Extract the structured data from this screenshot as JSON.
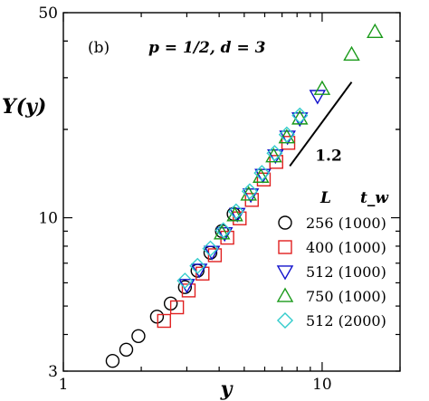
{
  "chart_data": {
    "type": "scatter",
    "panel_label": "(b)",
    "params_label": "p = 1/2, d = 3",
    "xlabel": "y",
    "ylabel": "Y(y)",
    "x_scale": "log",
    "y_scale": "log",
    "xlim": [
      1,
      20
    ],
    "ylim": [
      3,
      50
    ],
    "x_ticks": [
      {
        "value": 1,
        "label": "1"
      },
      {
        "value": 10,
        "label": "10"
      }
    ],
    "y_ticks": [
      {
        "value": 3,
        "label": "3"
      },
      {
        "value": 10,
        "label": "10"
      },
      {
        "value": 50,
        "label": "50"
      }
    ],
    "slope_annotation": {
      "label": "1.2",
      "slope": 1.2,
      "from": [
        7.5,
        15.0
      ],
      "to": [
        13.0,
        29.0
      ]
    },
    "legend": {
      "header_L": "L",
      "header_tw": "t_w",
      "position": "bottom-right"
    },
    "series": [
      {
        "name": "256 (1000)",
        "marker": "circle",
        "color": "#000000",
        "x": [
          1.55,
          1.75,
          1.95,
          2.3,
          2.6,
          2.95,
          3.3,
          3.7,
          4.1,
          4.55
        ],
        "y": [
          3.25,
          3.55,
          3.95,
          4.6,
          5.1,
          5.8,
          6.6,
          7.6,
          9.0,
          10.3
        ]
      },
      {
        "name": "400 (1000)",
        "marker": "square",
        "color": "#e02020",
        "x": [
          2.45,
          2.75,
          3.05,
          3.45,
          3.85,
          4.3,
          4.8,
          5.35,
          5.95,
          6.65,
          7.4
        ],
        "y": [
          4.45,
          4.95,
          5.65,
          6.45,
          7.45,
          8.55,
          9.95,
          11.5,
          13.5,
          15.5,
          18.0
        ]
      },
      {
        "name": "512 (1000)",
        "marker": "triangle-down",
        "color": "#1010cc",
        "x": [
          3.0,
          3.35,
          3.75,
          4.2,
          4.7,
          5.3,
          5.9,
          6.6,
          7.35,
          8.2,
          9.6
        ],
        "y": [
          5.9,
          6.65,
          7.65,
          8.85,
          10.3,
          12.0,
          14.0,
          16.3,
          18.9,
          21.8,
          26.0
        ]
      },
      {
        "name": "750 (1000)",
        "marker": "triangle-up",
        "color": "#1a9a1a",
        "x": [
          4.1,
          4.6,
          5.2,
          5.8,
          6.5,
          7.3,
          8.2,
          10.0,
          13.0,
          16.0
        ],
        "y": [
          8.85,
          10.2,
          12.0,
          13.8,
          16.2,
          18.8,
          21.8,
          27.5,
          36.0,
          43.0
        ]
      },
      {
        "name": "512 (2000)",
        "marker": "diamond",
        "color": "#33cccc",
        "x": [
          2.95,
          3.3,
          3.7,
          4.15,
          4.65,
          5.25,
          5.85,
          6.55,
          7.3,
          8.2
        ],
        "y": [
          6.1,
          6.85,
          7.85,
          9.05,
          10.5,
          12.3,
          14.2,
          16.6,
          19.2,
          22.3
        ]
      }
    ]
  }
}
